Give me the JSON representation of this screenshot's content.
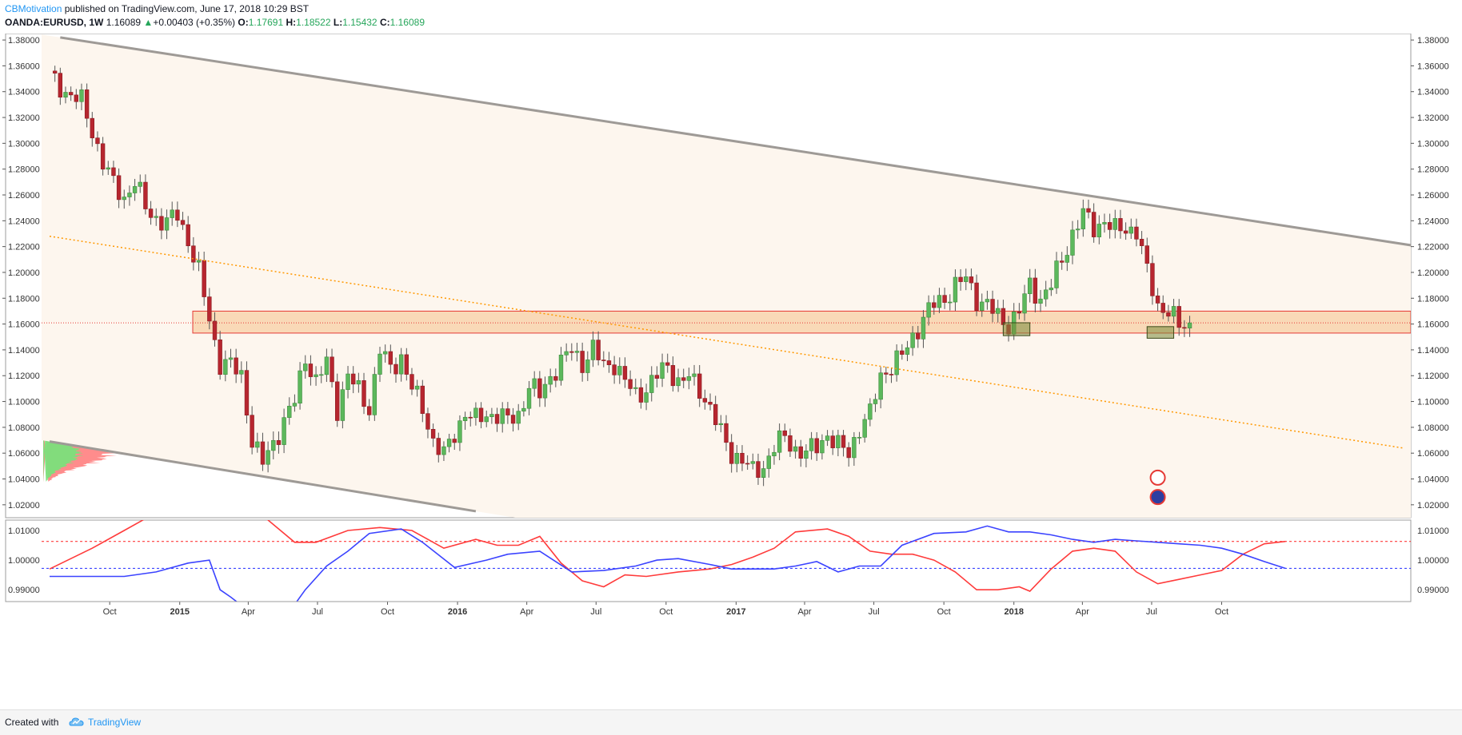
{
  "header": {
    "author": "CBMotivation",
    "published_text": "published on TradingView.com, June 17, 2018 10:29 BST",
    "symbol": "OANDA:EURUSD, 1W",
    "last": "1.16089",
    "change": "+0.00403 (+0.35%)",
    "open_label": "O:",
    "open": "1.17691",
    "high_label": "H:",
    "high": "1.18522",
    "low_label": "L:",
    "low": "1.15432",
    "close_label": "C:",
    "close": "1.16089"
  },
  "footer": {
    "created_with": "Created with",
    "brand": "TradingView"
  },
  "colors": {
    "bull": "#5cb85c",
    "bear": "#b7262f",
    "channel_line": "#9e9a96",
    "channel_fill": "#fdf6ee",
    "zone_fill": "#f8d3ad",
    "zone_border": "#e53935",
    "orange_dotted": "#ff9800",
    "osc_red": "#ff3b3b",
    "osc_blue": "#3b43ff",
    "profile_green": "#7be07b",
    "profile_red": "#ff8080",
    "profile_teal": "#3f9ea6",
    "profile_purple": "#a448b8"
  },
  "chart_data": [
    {
      "type": "candlestick",
      "symbol": "OANDA:EURUSD",
      "timeframe": "1W",
      "price_axis": {
        "ylim": [
          1.01,
          1.385
        ],
        "ticks": [
          "1.38000",
          "1.36000",
          "1.34000",
          "1.32000",
          "1.30000",
          "1.28000",
          "1.26000",
          "1.24000",
          "1.22000",
          "1.20000",
          "1.18000",
          "1.16000",
          "1.14000",
          "1.12000",
          "1.10000",
          "1.08000",
          "1.06000",
          "1.04000",
          "1.02000"
        ]
      },
      "time_axis": {
        "labels": [
          "Oct",
          "2015",
          "Apr",
          "Jul",
          "Oct",
          "2016",
          "Apr",
          "Jul",
          "Oct",
          "2017",
          "Apr",
          "Jul",
          "Oct",
          "2018",
          "Apr",
          "Jul",
          "Oct"
        ],
        "bold_labels": [
          "2015",
          "2016",
          "2017",
          "2018"
        ]
      },
      "week_range": {
        "start": "2014-07-14",
        "end": "2018-06-11"
      },
      "series_anchor_closes": [
        [
          0,
          1.352
        ],
        [
          3,
          1.34
        ],
        [
          6,
          1.332
        ],
        [
          8,
          1.31
        ],
        [
          10,
          1.285
        ],
        [
          12,
          1.268
        ],
        [
          14,
          1.258
        ],
        [
          16,
          1.27
        ],
        [
          18,
          1.25
        ],
        [
          20,
          1.242
        ],
        [
          22,
          1.238
        ],
        [
          24,
          1.245
        ],
        [
          26,
          1.225
        ],
        [
          28,
          1.2
        ],
        [
          30,
          1.163
        ],
        [
          32,
          1.13
        ],
        [
          34,
          1.128
        ],
        [
          36,
          1.12
        ],
        [
          38,
          1.07
        ],
        [
          40,
          1.052
        ],
        [
          42,
          1.068
        ],
        [
          44,
          1.085
        ],
        [
          46,
          1.1
        ],
        [
          48,
          1.135
        ],
        [
          50,
          1.115
        ],
        [
          52,
          1.13
        ],
        [
          54,
          1.095
        ],
        [
          56,
          1.12
        ],
        [
          58,
          1.108
        ],
        [
          60,
          1.095
        ],
        [
          62,
          1.14
        ],
        [
          64,
          1.125
        ],
        [
          66,
          1.135
        ],
        [
          68,
          1.11
        ],
        [
          70,
          1.095
        ],
        [
          72,
          1.07
        ],
        [
          74,
          1.058
        ],
        [
          76,
          1.075
        ],
        [
          78,
          1.092
        ],
        [
          80,
          1.085
        ],
        [
          82,
          1.09
        ],
        [
          84,
          1.09
        ],
        [
          86,
          1.085
        ],
        [
          88,
          1.09
        ],
        [
          90,
          1.112
        ],
        [
          92,
          1.105
        ],
        [
          94,
          1.12
        ],
        [
          96,
          1.13
        ],
        [
          98,
          1.14
        ],
        [
          100,
          1.13
        ],
        [
          102,
          1.14
        ],
        [
          104,
          1.128
        ],
        [
          106,
          1.13
        ],
        [
          108,
          1.115
        ],
        [
          110,
          1.105
        ],
        [
          112,
          1.11
        ],
        [
          114,
          1.12
        ],
        [
          116,
          1.128
        ],
        [
          118,
          1.115
        ],
        [
          120,
          1.118
        ],
        [
          122,
          1.11
        ],
        [
          124,
          1.095
        ],
        [
          126,
          1.075
        ],
        [
          128,
          1.06
        ],
        [
          130,
          1.055
        ],
        [
          132,
          1.045
        ],
        [
          134,
          1.05
        ],
        [
          136,
          1.065
        ],
        [
          138,
          1.072
        ],
        [
          140,
          1.063
        ],
        [
          142,
          1.06
        ],
        [
          144,
          1.065
        ],
        [
          146,
          1.075
        ],
        [
          148,
          1.065
        ],
        [
          150,
          1.06
        ],
        [
          152,
          1.08
        ],
        [
          154,
          1.09
        ],
        [
          156,
          1.12
        ],
        [
          158,
          1.128
        ],
        [
          160,
          1.135
        ],
        [
          162,
          1.15
        ],
        [
          164,
          1.165
        ],
        [
          166,
          1.175
        ],
        [
          168,
          1.18
        ],
        [
          170,
          1.19
        ],
        [
          172,
          1.195
        ],
        [
          174,
          1.18
        ],
        [
          176,
          1.175
        ],
        [
          178,
          1.165
        ],
        [
          180,
          1.16
        ],
        [
          182,
          1.17
        ],
        [
          184,
          1.19
        ],
        [
          186,
          1.18
        ],
        [
          188,
          1.19
        ],
        [
          190,
          1.21
        ],
        [
          192,
          1.23
        ],
        [
          194,
          1.245
        ],
        [
          196,
          1.235
        ],
        [
          198,
          1.24
        ],
        [
          200,
          1.232
        ],
        [
          202,
          1.235
        ],
        [
          204,
          1.232
        ],
        [
          206,
          1.2
        ],
        [
          208,
          1.175
        ],
        [
          210,
          1.17
        ],
        [
          212,
          1.158
        ],
        [
          214,
          1.16
        ]
      ],
      "last_close": 1.16089
    },
    {
      "type": "drawings",
      "support_resistance_zone": {
        "y_low": 1.153,
        "y_high": 1.17
      },
      "demand_boxes": [
        {
          "week_start": 179,
          "week_end": 184,
          "y_low": 1.151,
          "y_high": 1.161
        },
        {
          "week_start": 206,
          "week_end": 211,
          "y_low": 1.149,
          "y_high": 1.158
        }
      ],
      "channel_upper": {
        "p1": [
          2,
          1.382
        ],
        "p2": [
          254,
          1.222
        ]
      },
      "channel_lower": {
        "p1": [
          0,
          1.069
        ],
        "p2": [
          80,
          1.015
        ]
      },
      "orange_trendline": {
        "p1": [
          0,
          1.228
        ],
        "p2": [
          254,
          1.064
        ]
      }
    },
    {
      "type": "line",
      "panel": "oscillator",
      "ylim": [
        0.986,
        1.0135
      ],
      "ticks": [
        "1.01000",
        "1.00000",
        "0.99000"
      ],
      "levels": [
        1.0063,
        0.9972
      ],
      "series": [
        {
          "color": "#ff3b3b",
          "anchors": [
            [
              0,
              0.997
            ],
            [
              8,
              1.004
            ],
            [
              14,
              1.01
            ],
            [
              20,
              1.016
            ],
            [
              30,
              1.02
            ],
            [
              40,
              1.015
            ],
            [
              46,
              1.006
            ],
            [
              50,
              1.006
            ],
            [
              56,
              1.01
            ],
            [
              62,
              1.011
            ],
            [
              68,
              1.01
            ],
            [
              74,
              1.004
            ],
            [
              80,
              1.007
            ],
            [
              84,
              1.005
            ],
            [
              88,
              1.005
            ],
            [
              92,
              1.008
            ],
            [
              96,
              0.999
            ],
            [
              100,
              0.993
            ],
            [
              104,
              0.991
            ],
            [
              108,
              0.995
            ],
            [
              112,
              0.9945
            ],
            [
              118,
              0.996
            ],
            [
              124,
              0.997
            ],
            [
              128,
              0.9985
            ],
            [
              132,
              1.001
            ],
            [
              136,
              1.004
            ],
            [
              140,
              1.0095
            ],
            [
              146,
              1.0105
            ],
            [
              150,
              1.008
            ],
            [
              154,
              1.003
            ],
            [
              158,
              1.002
            ],
            [
              162,
              1.002
            ],
            [
              166,
              1.0
            ],
            [
              170,
              0.996
            ],
            [
              174,
              0.99
            ],
            [
              178,
              0.99
            ],
            [
              182,
              0.991
            ],
            [
              184,
              0.9895
            ],
            [
              188,
              0.997
            ],
            [
              192,
              1.003
            ],
            [
              196,
              1.004
            ],
            [
              200,
              1.003
            ],
            [
              204,
              0.996
            ],
            [
              208,
              0.992
            ],
            [
              212,
              0.9935
            ],
            [
              216,
              0.995
            ],
            [
              220,
              0.9965
            ],
            [
              224,
              1.002
            ],
            [
              228,
              1.0055
            ],
            [
              232,
              1.0063
            ]
          ]
        },
        {
          "color": "#3b43ff",
          "anchors": [
            [
              0,
              0.9945
            ],
            [
              8,
              0.9945
            ],
            [
              14,
              0.9945
            ],
            [
              20,
              0.996
            ],
            [
              26,
              0.999
            ],
            [
              30,
              1.0
            ],
            [
              32,
              0.99
            ],
            [
              34,
              0.9875
            ],
            [
              38,
              0.982
            ],
            [
              44,
              0.98
            ],
            [
              48,
              0.99
            ],
            [
              52,
              0.998
            ],
            [
              56,
              1.003
            ],
            [
              60,
              1.009
            ],
            [
              66,
              1.0105
            ],
            [
              70,
              1.006
            ],
            [
              76,
              0.9975
            ],
            [
              82,
              1.0
            ],
            [
              86,
              1.002
            ],
            [
              92,
              1.003
            ],
            [
              98,
              0.996
            ],
            [
              104,
              0.9965
            ],
            [
              110,
              0.998
            ],
            [
              114,
              1.0
            ],
            [
              118,
              1.0005
            ],
            [
              124,
              0.9985
            ],
            [
              128,
              0.997
            ],
            [
              132,
              0.997
            ],
            [
              136,
              0.997
            ],
            [
              140,
              0.998
            ],
            [
              144,
              0.9995
            ],
            [
              148,
              0.996
            ],
            [
              152,
              0.998
            ],
            [
              156,
              0.998
            ],
            [
              160,
              1.005
            ],
            [
              166,
              1.009
            ],
            [
              172,
              1.0095
            ],
            [
              176,
              1.0115
            ],
            [
              180,
              1.0095
            ],
            [
              184,
              1.0095
            ],
            [
              188,
              1.0085
            ],
            [
              192,
              1.007
            ],
            [
              196,
              1.006
            ],
            [
              200,
              1.007
            ],
            [
              204,
              1.0065
            ],
            [
              208,
              1.006
            ],
            [
              212,
              1.0055
            ],
            [
              216,
              1.005
            ],
            [
              220,
              1.004
            ],
            [
              224,
              1.002
            ],
            [
              228,
              0.9995
            ],
            [
              232,
              0.9972
            ]
          ]
        }
      ]
    }
  ]
}
